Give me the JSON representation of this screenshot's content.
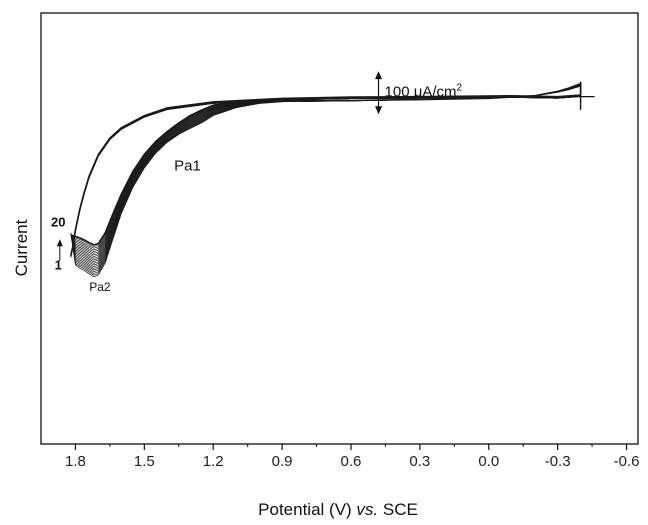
{
  "chart_data": {
    "type": "line",
    "title": "",
    "xlabel_parts": [
      "Potential (V) ",
      "vs.",
      " SCE"
    ],
    "ylabel": "Current",
    "x_reversed": true,
    "xlim": [
      1.95,
      -0.65
    ],
    "x_ticks": [
      1.8,
      1.5,
      1.2,
      0.9,
      0.6,
      0.3,
      0.0,
      -0.3,
      -0.6
    ],
    "x_tick_labels": [
      "1.8",
      "1.5",
      "1.2",
      "0.9",
      "0.6",
      "0.3",
      "0.0",
      "-0.3",
      "-0.6"
    ],
    "ylim": [
      -800,
      200
    ],
    "y_ticks_labeled": false,
    "grid": false,
    "cycles": 20,
    "scale_bar": {
      "x": 0.48,
      "y_from": 65,
      "y_to": -35,
      "label_main": "100 μA/cm",
      "label_sup": "2"
    },
    "annotations": [
      {
        "text": "Pa1",
        "x": 1.37,
        "y": -165
      },
      {
        "text": "Pa2",
        "x": 1.74,
        "y": -445
      },
      {
        "text": "20",
        "x": 1.875,
        "y": -295
      },
      {
        "text": "1",
        "x": 1.875,
        "y": -395
      }
    ],
    "cycle_arrow": {
      "x": 1.868,
      "y_from": -375,
      "y_to": -325
    },
    "series_profile": {
      "forward_x": [
        1.82,
        1.8,
        1.78,
        1.76,
        1.74,
        1.72,
        1.7,
        1.67,
        1.64,
        1.6,
        1.55,
        1.5,
        1.45,
        1.4,
        1.35,
        1.3,
        1.25,
        1.2,
        1.1,
        1.0,
        0.9,
        0.6,
        0.3,
        0.0,
        -0.2,
        -0.3,
        -0.35,
        -0.38,
        -0.4
      ],
      "forward_y_cycle1": [
        -310,
        -385,
        -392,
        -398,
        -405,
        -412,
        -408,
        -380,
        -330,
        -265,
        -205,
        -160,
        -125,
        -100,
        -82,
        -68,
        -55,
        -38,
        -20,
        -10,
        -6,
        -4,
        -1,
        2,
        8,
        16,
        22,
        27,
        30
      ],
      "forward_y_cycle20": [
        -315,
        -318,
        -322,
        -327,
        -333,
        -338,
        -335,
        -310,
        -270,
        -220,
        -168,
        -128,
        -98,
        -75,
        -55,
        -38,
        -25,
        -14,
        -6,
        -4,
        -4,
        -3,
        -1,
        2,
        8,
        18,
        26,
        32,
        36
      ],
      "reverse_x": [
        -0.4,
        -0.3,
        -0.1,
        0.3,
        0.6,
        0.9,
        1.2,
        1.4,
        1.5,
        1.6,
        1.65,
        1.7,
        1.74,
        1.76,
        1.78,
        1.8,
        1.81,
        1.82
      ],
      "reverse_y": [
        8,
        4,
        6,
        4,
        3,
        0,
        -8,
        -22,
        -40,
        -68,
        -92,
        -130,
        -180,
        -215,
        -255,
        -305,
        -340,
        -365
      ]
    }
  }
}
